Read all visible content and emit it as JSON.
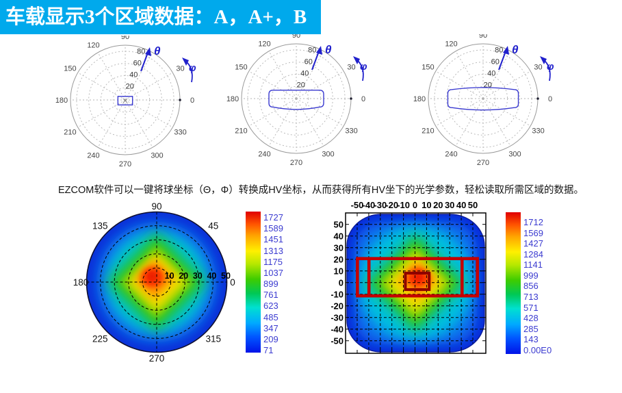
{
  "banner": {
    "title": "车载显示3个区域数据：A，A+，B",
    "bg_color": "#00A9EC",
    "fg_color": "#FFFFFF"
  },
  "caption": "EZCOM软件可以一键将球坐标（Θ，Φ）转换成HV坐标，从而获得所有HV坐下的光学参数，轻松读取所需区域的数据。",
  "colors": {
    "polar_grid": "#b3b3b3",
    "polar_data_outline": "#3a3ad0",
    "axis_symbol_blue": "#2020cc",
    "colorbar_label": "#3b3bd0",
    "region_outline_red": "#c40000",
    "region_inner_red": "#8e0000"
  },
  "chart_data": [
    {
      "type": "line",
      "coord": "polar",
      "name": "polar-region-a",
      "angular_ticks": [
        "0",
        "30",
        "90",
        "120",
        "150",
        "180",
        "210",
        "240",
        "270",
        "300",
        "330"
      ],
      "radial_ticks": [
        "20",
        "40",
        "60",
        "80"
      ],
      "annotations": [
        "θ",
        "φ"
      ],
      "series": [
        {
          "name": "region-A-outline",
          "shape": "rectangle",
          "theta_half_width_deg": 12,
          "phi_half_height_deg": 7
        }
      ]
    },
    {
      "type": "line",
      "coord": "polar",
      "name": "polar-region-a-plus",
      "angular_ticks": [
        "0",
        "30",
        "90",
        "120",
        "150",
        "180",
        "210",
        "240",
        "270",
        "300",
        "330"
      ],
      "radial_ticks": [
        "20",
        "40",
        "60",
        "80"
      ],
      "annotations": [
        "θ",
        "φ"
      ],
      "series": [
        {
          "name": "region-A-plus-outline",
          "shape": "band",
          "top_edge": "flat",
          "bottom_edge": "bulged",
          "theta_half_width_deg": 45,
          "phi_half_height_deg": 15
        }
      ]
    },
    {
      "type": "line",
      "coord": "polar",
      "name": "polar-region-b",
      "angular_ticks": [
        "0",
        "30",
        "90",
        "120",
        "150",
        "180",
        "210",
        "240",
        "270",
        "300",
        "330"
      ],
      "radial_ticks": [
        "20",
        "40",
        "60",
        "80"
      ],
      "annotations": [
        "θ",
        "φ"
      ],
      "series": [
        {
          "name": "region-B-outline",
          "shape": "band",
          "top_edge": "bulged",
          "bottom_edge": "bulged",
          "theta_half_width_deg": 58,
          "phi_half_height_deg": 16
        }
      ]
    },
    {
      "type": "heatmap",
      "coord": "polar",
      "name": "intensity-polar-map",
      "angular_ticks": [
        "90",
        "45",
        "0",
        "315",
        "270",
        "225",
        "180",
        "135"
      ],
      "radial_ticks": [
        "10",
        "20",
        "30",
        "40",
        "50"
      ],
      "colorbar_ticks": [
        "1727",
        "1589",
        "1451",
        "1313",
        "1175",
        "1037",
        "899",
        "761",
        "623",
        "485",
        "347",
        "209",
        "71"
      ],
      "value_range": [
        71,
        1727
      ],
      "palette": "jet",
      "peak_location": "near-center"
    },
    {
      "type": "heatmap",
      "coord": "cartesian",
      "name": "intensity-hv-map",
      "x_ticks": [
        "-50",
        "-40",
        "-30",
        "-20",
        "-10",
        "0",
        "10",
        "20",
        "30",
        "40",
        "50"
      ],
      "y_ticks": [
        "50",
        "40",
        "30",
        "20",
        "10",
        "0",
        "-10",
        "-20",
        "-30",
        "-40",
        "-50"
      ],
      "colorbar_ticks": [
        "1712",
        "1569",
        "1427",
        "1284",
        "1141",
        "999",
        "856",
        "713",
        "571",
        "428",
        "285",
        "143",
        "0.00E0"
      ],
      "value_range": [
        0,
        1712
      ],
      "palette": "jet",
      "overlay_regions": {
        "outer_rect": {
          "x": [
            -50,
            53.8
          ],
          "y": [
            -12,
            20
          ]
        },
        "divider_x": [
          -40,
          40.5
        ],
        "inner_rect": {
          "x": [
            -8.5,
            12.1
          ],
          "y": [
            -6.6,
            7.5
          ]
        }
      }
    }
  ]
}
